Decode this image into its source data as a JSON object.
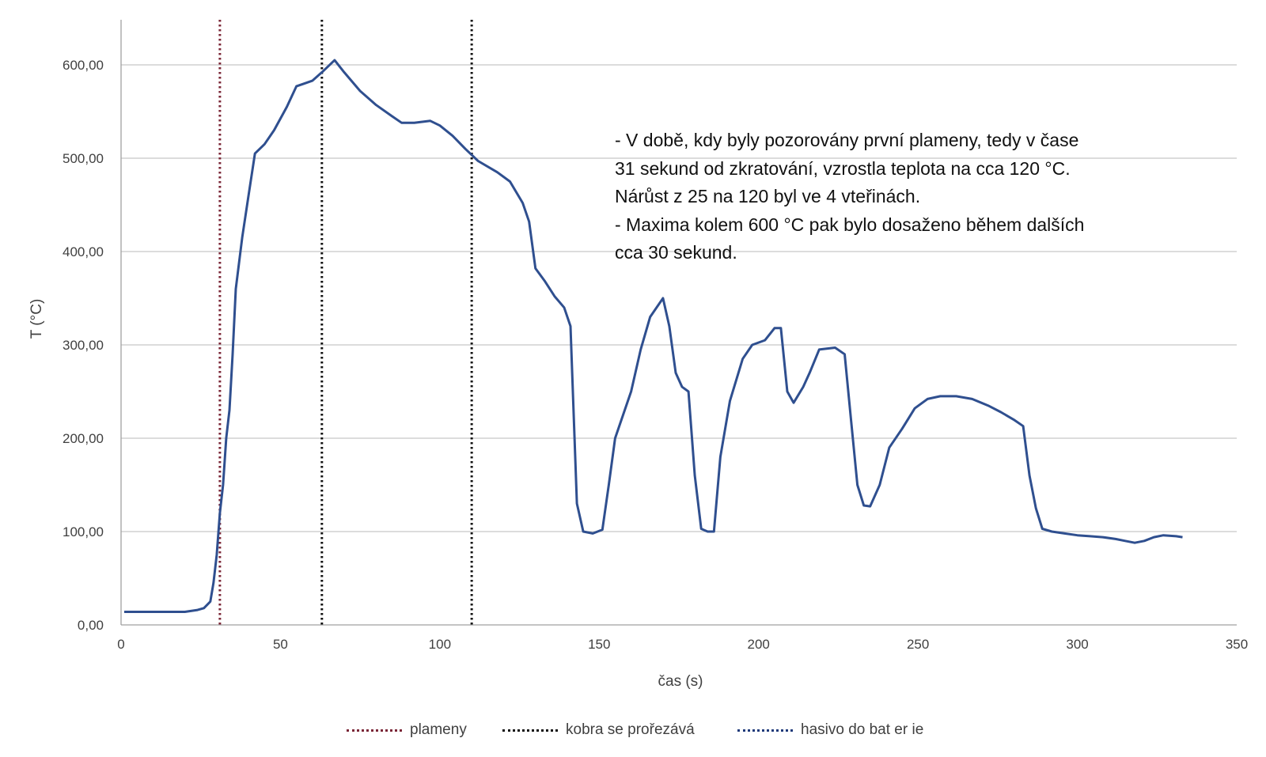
{
  "chart_data": {
    "type": "line",
    "xlabel": "čas (s)",
    "ylabel": "T  (°C)",
    "xlim": [
      0,
      350
    ],
    "ylim": [
      0,
      600
    ],
    "x_ticks": [
      "0",
      "50",
      "100",
      "150",
      "200",
      "250",
      "300",
      "350"
    ],
    "y_ticks": [
      "0,00",
      "100,00",
      "200,00",
      "300,00",
      "400,00",
      "500,00",
      "600,00"
    ],
    "grid": "horizontal",
    "legend_position": "bottom",
    "series": [
      {
        "color": "#2f4f8f",
        "points": [
          [
            1,
            14
          ],
          [
            10,
            14
          ],
          [
            20,
            14
          ],
          [
            24,
            16
          ],
          [
            26,
            18
          ],
          [
            28,
            25
          ],
          [
            29,
            45
          ],
          [
            30,
            75
          ],
          [
            31,
            120
          ],
          [
            32,
            150
          ],
          [
            33,
            200
          ],
          [
            34,
            230
          ],
          [
            35,
            290
          ],
          [
            36,
            360
          ],
          [
            38,
            415
          ],
          [
            40,
            460
          ],
          [
            42,
            505
          ],
          [
            45,
            515
          ],
          [
            48,
            530
          ],
          [
            52,
            555
          ],
          [
            55,
            577
          ],
          [
            60,
            583
          ],
          [
            63,
            592
          ],
          [
            67,
            605
          ],
          [
            70,
            592
          ],
          [
            75,
            572
          ],
          [
            80,
            557
          ],
          [
            85,
            545
          ],
          [
            88,
            538
          ],
          [
            92,
            538
          ],
          [
            97,
            540
          ],
          [
            100,
            535
          ],
          [
            104,
            524
          ],
          [
            108,
            510
          ],
          [
            112,
            497
          ],
          [
            118,
            485
          ],
          [
            122,
            475
          ],
          [
            126,
            452
          ],
          [
            128,
            432
          ],
          [
            130,
            382
          ],
          [
            133,
            368
          ],
          [
            136,
            352
          ],
          [
            139,
            340
          ],
          [
            141,
            320
          ],
          [
            143,
            130
          ],
          [
            145,
            100
          ],
          [
            148,
            98
          ],
          [
            151,
            102
          ],
          [
            153,
            150
          ],
          [
            155,
            200
          ],
          [
            158,
            230
          ],
          [
            160,
            250
          ],
          [
            163,
            295
          ],
          [
            166,
            330
          ],
          [
            170,
            350
          ],
          [
            172,
            320
          ],
          [
            174,
            270
          ],
          [
            176,
            255
          ],
          [
            178,
            250
          ],
          [
            180,
            160
          ],
          [
            182,
            103
          ],
          [
            184,
            100
          ],
          [
            186,
            100
          ],
          [
            188,
            180
          ],
          [
            191,
            240
          ],
          [
            195,
            285
          ],
          [
            198,
            300
          ],
          [
            202,
            305
          ],
          [
            205,
            318
          ],
          [
            207,
            318
          ],
          [
            209,
            250
          ],
          [
            211,
            238
          ],
          [
            214,
            255
          ],
          [
            216,
            270
          ],
          [
            219,
            295
          ],
          [
            224,
            297
          ],
          [
            227,
            290
          ],
          [
            229,
            220
          ],
          [
            231,
            150
          ],
          [
            233,
            128
          ],
          [
            235,
            127
          ],
          [
            238,
            150
          ],
          [
            241,
            190
          ],
          [
            245,
            210
          ],
          [
            249,
            232
          ],
          [
            253,
            242
          ],
          [
            257,
            245
          ],
          [
            262,
            245
          ],
          [
            267,
            242
          ],
          [
            272,
            235
          ],
          [
            276,
            228
          ],
          [
            280,
            220
          ],
          [
            283,
            213
          ],
          [
            285,
            160
          ],
          [
            287,
            125
          ],
          [
            289,
            103
          ],
          [
            292,
            100
          ],
          [
            296,
            98
          ],
          [
            300,
            96
          ],
          [
            304,
            95
          ],
          [
            308,
            94
          ],
          [
            312,
            92
          ],
          [
            315,
            90
          ],
          [
            318,
            88
          ],
          [
            321,
            90
          ],
          [
            324,
            94
          ],
          [
            327,
            96
          ],
          [
            331,
            95
          ],
          [
            333,
            94
          ]
        ]
      }
    ],
    "vertical_markers": [
      {
        "name": "plameny",
        "x": 31,
        "color": "#7b2737"
      },
      {
        "name": "kobra se prořezává",
        "x": 63,
        "color": "#111111"
      },
      {
        "name": "hasivo do baterie",
        "x": 110,
        "color": "#111111"
      }
    ],
    "legend": [
      {
        "label": "plameny",
        "color": "#7b2737"
      },
      {
        "label": "kobra se prořezává",
        "color": "#111111"
      },
      {
        "label": "hasivo do bat er ie",
        "color": "#1f3a7a"
      }
    ]
  },
  "annotation": {
    "lines": [
      "- V době, kdy byly pozorovány první plameny, tedy  v čase",
      "31 sekund od zkratování, vzrostla teplota na cca 120 °C.",
      "Nárůst z 25  na 120 byl ve 4 vteřinách.",
      "- Maxima kolem 600 °C pak bylo dosaženo během dalších",
      "cca 30 sekund."
    ]
  }
}
